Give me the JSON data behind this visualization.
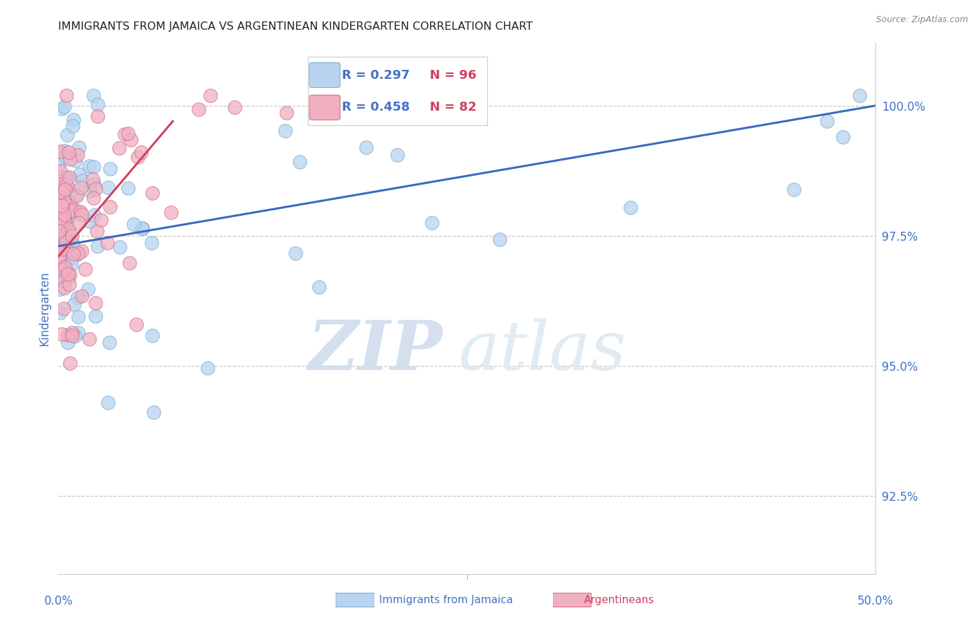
{
  "title": "IMMIGRANTS FROM JAMAICA VS ARGENTINEAN KINDERGARTEN CORRELATION CHART",
  "source": "Source: ZipAtlas.com",
  "ylabel": "Kindergarten",
  "yticks": [
    92.5,
    95.0,
    97.5,
    100.0
  ],
  "ytick_labels": [
    "92.5%",
    "95.0%",
    "97.5%",
    "100.0%"
  ],
  "xmin": 0.0,
  "xmax": 50.0,
  "ymin": 91.0,
  "ymax": 101.2,
  "watermark_zip": "ZIP",
  "watermark_atlas": "atlas",
  "series1_color": "#b8d4f0",
  "series1_edge": "#7aafd4",
  "series2_color": "#f0b0c0",
  "series2_edge": "#d47090",
  "trendline1_color": "#3a6abf",
  "trendline2_color": "#d04060",
  "grid_color": "#c8c8c8",
  "blue_text_color": "#4472c4",
  "pink_text_color": "#d04060",
  "title_color": "#222222",
  "source_color": "#888888",
  "legend_r1": "R = 0.297",
  "legend_n1": "N = 96",
  "legend_r2": "R = 0.458",
  "legend_n2": "N = 82",
  "blue_line_x0": 0.0,
  "blue_line_y0": 97.3,
  "blue_line_x1": 50.0,
  "blue_line_y1": 100.0,
  "pink_line_x0": 0.0,
  "pink_line_y0": 97.1,
  "pink_line_x1": 7.0,
  "pink_line_y1": 99.7
}
